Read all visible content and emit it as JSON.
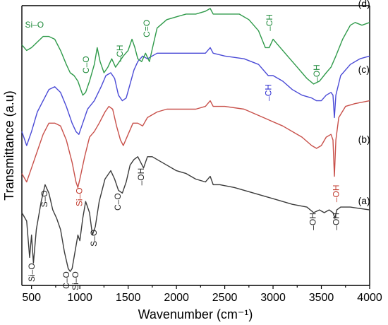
{
  "chart_data": {
    "type": "line",
    "xlabel": "Wavenumber (cm⁻¹)",
    "ylabel": "Transmittance (a.u)",
    "xlim": [
      400,
      4000
    ],
    "ylim": [
      0,
      100
    ],
    "xticks": [
      500,
      1000,
      1500,
      2000,
      2500,
      3000,
      3500,
      4000
    ],
    "grid": false,
    "series": [
      {
        "name": "(a)",
        "color": "#3b3b3b",
        "points": [
          [
            400,
            26
          ],
          [
            450,
            23
          ],
          [
            480,
            10
          ],
          [
            500,
            18
          ],
          [
            520,
            8
          ],
          [
            550,
            20
          ],
          [
            600,
            30
          ],
          [
            640,
            36
          ],
          [
            680,
            33
          ],
          [
            720,
            27
          ],
          [
            760,
            24
          ],
          [
            800,
            20
          ],
          [
            840,
            12
          ],
          [
            880,
            6
          ],
          [
            900,
            5
          ],
          [
            920,
            6
          ],
          [
            950,
            12
          ],
          [
            980,
            18
          ],
          [
            1000,
            16
          ],
          [
            1030,
            24
          ],
          [
            1060,
            30
          ],
          [
            1100,
            26
          ],
          [
            1130,
            18
          ],
          [
            1160,
            21
          ],
          [
            1200,
            30
          ],
          [
            1260,
            38
          ],
          [
            1320,
            41
          ],
          [
            1360,
            38
          ],
          [
            1400,
            34
          ],
          [
            1440,
            33
          ],
          [
            1480,
            37
          ],
          [
            1520,
            43
          ],
          [
            1560,
            45
          ],
          [
            1600,
            46
          ],
          [
            1660,
            42
          ],
          [
            1700,
            46
          ],
          [
            1750,
            46
          ],
          [
            1800,
            45
          ],
          [
            1900,
            43
          ],
          [
            2000,
            41
          ],
          [
            2100,
            40
          ],
          [
            2200,
            38
          ],
          [
            2300,
            37
          ],
          [
            2350,
            39
          ],
          [
            2380,
            36
          ],
          [
            2450,
            36
          ],
          [
            2600,
            35
          ],
          [
            2800,
            33
          ],
          [
            3000,
            31
          ],
          [
            3200,
            29
          ],
          [
            3350,
            28
          ],
          [
            3420,
            26
          ],
          [
            3480,
            27
          ],
          [
            3530,
            26
          ],
          [
            3580,
            27
          ],
          [
            3620,
            26
          ],
          [
            3640,
            24
          ],
          [
            3660,
            27
          ],
          [
            3700,
            28
          ],
          [
            3800,
            28
          ],
          [
            4000,
            27
          ]
        ]
      },
      {
        "name": "(b)",
        "color": "#c8504a",
        "points": [
          [
            400,
            40
          ],
          [
            450,
            37
          ],
          [
            500,
            42
          ],
          [
            560,
            48
          ],
          [
            620,
            54
          ],
          [
            680,
            58
          ],
          [
            740,
            58
          ],
          [
            800,
            57
          ],
          [
            860,
            52
          ],
          [
            920,
            44
          ],
          [
            960,
            37
          ],
          [
            980,
            35
          ],
          [
            1000,
            38
          ],
          [
            1050,
            46
          ],
          [
            1100,
            53
          ],
          [
            1150,
            55
          ],
          [
            1200,
            58
          ],
          [
            1260,
            62
          ],
          [
            1300,
            64
          ],
          [
            1340,
            63
          ],
          [
            1380,
            57
          ],
          [
            1420,
            52
          ],
          [
            1450,
            50
          ],
          [
            1500,
            54
          ],
          [
            1550,
            58
          ],
          [
            1600,
            58
          ],
          [
            1650,
            57
          ],
          [
            1700,
            60
          ],
          [
            1800,
            62
          ],
          [
            1900,
            63
          ],
          [
            2000,
            63
          ],
          [
            2100,
            63
          ],
          [
            2200,
            63
          ],
          [
            2300,
            64
          ],
          [
            2350,
            66
          ],
          [
            2380,
            64
          ],
          [
            2500,
            64
          ],
          [
            2700,
            63
          ],
          [
            2900,
            60
          ],
          [
            3100,
            57
          ],
          [
            3300,
            53
          ],
          [
            3400,
            50
          ],
          [
            3450,
            49
          ],
          [
            3500,
            50
          ],
          [
            3550,
            53
          ],
          [
            3600,
            54
          ],
          [
            3620,
            52
          ],
          [
            3635,
            39
          ],
          [
            3650,
            52
          ],
          [
            3680,
            60
          ],
          [
            3750,
            64
          ],
          [
            3850,
            65
          ],
          [
            4000,
            66
          ]
        ]
      },
      {
        "name": "(c)",
        "color": "#4a4ad6",
        "points": [
          [
            400,
            55
          ],
          [
            450,
            50
          ],
          [
            500,
            55
          ],
          [
            560,
            62
          ],
          [
            620,
            66
          ],
          [
            680,
            70
          ],
          [
            740,
            71
          ],
          [
            800,
            69
          ],
          [
            860,
            64
          ],
          [
            920,
            58
          ],
          [
            960,
            55
          ],
          [
            990,
            54
          ],
          [
            1030,
            58
          ],
          [
            1080,
            63
          ],
          [
            1150,
            66
          ],
          [
            1220,
            71
          ],
          [
            1270,
            75
          ],
          [
            1320,
            76
          ],
          [
            1360,
            74
          ],
          [
            1400,
            68
          ],
          [
            1440,
            66
          ],
          [
            1480,
            67
          ],
          [
            1520,
            72
          ],
          [
            1560,
            77
          ],
          [
            1600,
            80
          ],
          [
            1650,
            82
          ],
          [
            1700,
            81
          ],
          [
            1800,
            83
          ],
          [
            1900,
            83
          ],
          [
            2000,
            83
          ],
          [
            2100,
            83
          ],
          [
            2200,
            83
          ],
          [
            2300,
            83
          ],
          [
            2350,
            85
          ],
          [
            2380,
            83
          ],
          [
            2500,
            82
          ],
          [
            2700,
            81
          ],
          [
            2850,
            79
          ],
          [
            2950,
            75
          ],
          [
            3000,
            75
          ],
          [
            3100,
            73
          ],
          [
            3200,
            70
          ],
          [
            3300,
            68
          ],
          [
            3400,
            67
          ],
          [
            3450,
            66
          ],
          [
            3500,
            66
          ],
          [
            3550,
            68
          ],
          [
            3600,
            69
          ],
          [
            3620,
            68
          ],
          [
            3635,
            60
          ],
          [
            3650,
            68
          ],
          [
            3700,
            75
          ],
          [
            3800,
            79
          ],
          [
            3900,
            81
          ],
          [
            4000,
            82
          ]
        ]
      },
      {
        "name": "(d)",
        "color": "#2f9a4a",
        "points": [
          [
            400,
            86
          ],
          [
            450,
            84
          ],
          [
            500,
            85
          ],
          [
            560,
            87
          ],
          [
            620,
            89
          ],
          [
            680,
            89
          ],
          [
            740,
            88
          ],
          [
            800,
            84
          ],
          [
            860,
            79
          ],
          [
            900,
            76
          ],
          [
            940,
            75
          ],
          [
            980,
            73
          ],
          [
            1030,
            68
          ],
          [
            1060,
            69
          ],
          [
            1100,
            73
          ],
          [
            1150,
            79
          ],
          [
            1180,
            85
          ],
          [
            1210,
            80
          ],
          [
            1250,
            76
          ],
          [
            1290,
            78
          ],
          [
            1330,
            81
          ],
          [
            1370,
            78
          ],
          [
            1410,
            80
          ],
          [
            1450,
            82
          ],
          [
            1500,
            84
          ],
          [
            1540,
            88
          ],
          [
            1570,
            85
          ],
          [
            1600,
            81
          ],
          [
            1640,
            80
          ],
          [
            1680,
            83
          ],
          [
            1720,
            80
          ],
          [
            1760,
            86
          ],
          [
            1800,
            92
          ],
          [
            1900,
            95
          ],
          [
            2000,
            96
          ],
          [
            2100,
            97
          ],
          [
            2200,
            97
          ],
          [
            2300,
            98
          ],
          [
            2350,
            99
          ],
          [
            2380,
            97
          ],
          [
            2500,
            97
          ],
          [
            2650,
            97
          ],
          [
            2750,
            95
          ],
          [
            2850,
            91
          ],
          [
            2920,
            85
          ],
          [
            2960,
            85
          ],
          [
            3000,
            88
          ],
          [
            3050,
            86
          ],
          [
            3150,
            82
          ],
          [
            3250,
            78
          ],
          [
            3350,
            74
          ],
          [
            3420,
            72
          ],
          [
            3480,
            73
          ],
          [
            3550,
            76
          ],
          [
            3600,
            78
          ],
          [
            3650,
            82
          ],
          [
            3720,
            88
          ],
          [
            3800,
            93
          ],
          [
            3850,
            94
          ],
          [
            3920,
            93
          ],
          [
            4000,
            94
          ]
        ]
      }
    ],
    "curve_labels": [
      {
        "text": "(a)",
        "x": 3880,
        "y": 29
      },
      {
        "text": "(b)",
        "x": 3880,
        "y": 51
      },
      {
        "text": "(c)",
        "x": 3880,
        "y": 76
      },
      {
        "text": "(d)",
        "x": 3880,
        "y": 99.5
      }
    ],
    "annotations": [
      {
        "text": "Si–O",
        "x": 510,
        "y": 8,
        "rot": -90,
        "color": "#222222"
      },
      {
        "text": "S–O",
        "x": 640,
        "y": 34,
        "rot": -90,
        "color": "#222222"
      },
      {
        "text": "C–O",
        "x": 865,
        "y": 5,
        "rot": -90,
        "color": "#222222"
      },
      {
        "text": "Si–O",
        "x": 960,
        "y": 5,
        "rot": -90,
        "color": "#222222"
      },
      {
        "text": "S–O",
        "x": 1150,
        "y": 20,
        "rot": -90,
        "color": "#222222"
      },
      {
        "text": "C–O",
        "x": 1400,
        "y": 33,
        "rot": -90,
        "color": "#222222"
      },
      {
        "text": "–OH",
        "x": 1640,
        "y": 42,
        "rot": -90,
        "color": "#222222"
      },
      {
        "text": "–OH",
        "x": 3420,
        "y": 26,
        "rot": -90,
        "color": "#222222"
      },
      {
        "text": "–OH",
        "x": 3660,
        "y": 26,
        "rot": -90,
        "color": "#222222"
      },
      {
        "text": "Si–O",
        "x": 1000,
        "y": 35,
        "rot": -90,
        "color": "#c0392b"
      },
      {
        "text": "–OH",
        "x": 3660,
        "y": 36,
        "rot": -90,
        "color": "#c0392b"
      },
      {
        "text": "–CH",
        "x": 2960,
        "y": 72,
        "rot": -90,
        "color": "#2a2ad0"
      },
      {
        "text": "Si–O",
        "x": 530,
        "y": 93,
        "rot": 0,
        "color": "#1e8a3a"
      },
      {
        "text": "C–O",
        "x": 1070,
        "y": 82,
        "rot": -90,
        "color": "#1e8a3a"
      },
      {
        "text": "–CH",
        "x": 1420,
        "y": 86,
        "rot": -90,
        "color": "#1e8a3a"
      },
      {
        "text": "C=O",
        "x": 1700,
        "y": 95,
        "rot": -90,
        "color": "#1e8a3a"
      },
      {
        "text": "–CH",
        "x": 2970,
        "y": 97,
        "rot": -90,
        "color": "#1e8a3a"
      },
      {
        "text": "–OH",
        "x": 3460,
        "y": 79,
        "rot": -90,
        "color": "#1e8a3a"
      }
    ]
  }
}
